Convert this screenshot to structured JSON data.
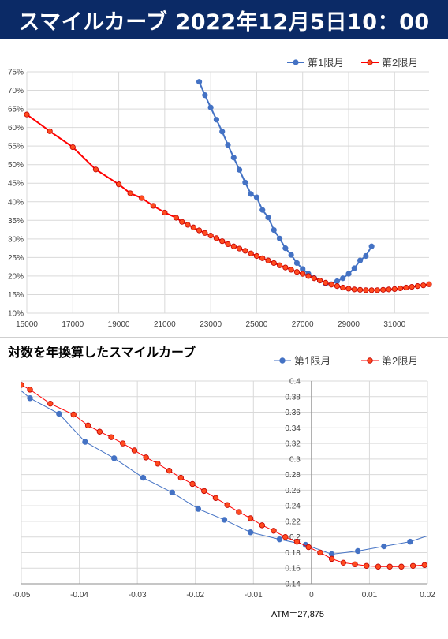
{
  "header": {
    "title": "スマイルカーブ 2022年12月5日10：00"
  },
  "colors": {
    "header_bg": "#0b2a66",
    "series1": "#4472c4",
    "series2": "#ff0000",
    "series2_fill": "#ff4b1f"
  },
  "chart_data": [
    {
      "type": "line",
      "title": "",
      "legend": "top-right",
      "grid": true,
      "xlim": [
        15000,
        32500
      ],
      "ylim": [
        10,
        75
      ],
      "x_ticks": [
        "15000",
        "17000",
        "19000",
        "21000",
        "23000",
        "25000",
        "27000",
        "29000",
        "31000"
      ],
      "y_ticks": [
        "10%",
        "15%",
        "20%",
        "25%",
        "30%",
        "35%",
        "40%",
        "45%",
        "50%",
        "55%",
        "60%",
        "65%",
        "70%",
        "75%"
      ],
      "series": [
        {
          "name": "第1限月",
          "x": [
            22500,
            22750,
            23000,
            23250,
            23500,
            23750,
            24000,
            24250,
            24500,
            24750,
            25000,
            25250,
            25500,
            25750,
            26000,
            26250,
            26500,
            26750,
            27000,
            27250,
            27500,
            27750,
            28000,
            28250,
            28500,
            28750,
            29000,
            29250,
            29500,
            29750,
            30000
          ],
          "y": [
            72.3,
            68.7,
            65.4,
            62.1,
            58.9,
            55.3,
            51.9,
            48.6,
            45.2,
            42.1,
            41.2,
            37.8,
            35.8,
            32.4,
            30.1,
            27.5,
            25.7,
            23.5,
            21.9,
            20.6,
            19.5,
            18.8,
            18.0,
            17.8,
            18.6,
            19.4,
            20.6,
            22.1,
            24.2,
            25.4,
            28.0
          ]
        },
        {
          "name": "第2限月",
          "x": [
            15000,
            16000,
            17000,
            18000,
            19000,
            19500,
            20000,
            20500,
            21000,
            21500,
            21750,
            22000,
            22250,
            22500,
            22750,
            23000,
            23250,
            23500,
            23750,
            24000,
            24250,
            24500,
            24750,
            25000,
            25250,
            25500,
            25750,
            26000,
            26250,
            26500,
            26750,
            27000,
            27250,
            27500,
            27750,
            28000,
            28250,
            28500,
            28750,
            29000,
            29250,
            29500,
            29750,
            30000,
            30250,
            30500,
            30750,
            31000,
            31250,
            31500,
            31750,
            32000,
            32250,
            32500
          ],
          "y": [
            63.5,
            59.0,
            54.7,
            48.7,
            44.7,
            42.3,
            41.0,
            38.9,
            37.1,
            35.7,
            34.6,
            33.8,
            33.1,
            32.3,
            31.6,
            30.9,
            30.2,
            29.4,
            28.6,
            28.0,
            27.4,
            26.8,
            26.1,
            25.4,
            24.8,
            24.2,
            23.5,
            22.9,
            22.3,
            21.7,
            21.1,
            20.6,
            20.0,
            19.4,
            18.8,
            18.2,
            17.7,
            17.3,
            16.9,
            16.6,
            16.4,
            16.3,
            16.2,
            16.2,
            16.2,
            16.3,
            16.4,
            16.5,
            16.7,
            16.9,
            17.1,
            17.3,
            17.5,
            17.8
          ]
        }
      ]
    },
    {
      "type": "line",
      "title": "対数を年換算したスマイルカーブ",
      "legend": "top-right",
      "grid": true,
      "xlim": [
        -0.05,
        0.02
      ],
      "ylim": [
        0.14,
        0.4
      ],
      "x_ticks": [
        "-0.05",
        "-0.04",
        "-0.03",
        "-0.02",
        "-0.01",
        "0",
        "0.01",
        "0.02"
      ],
      "y_ticks": [
        "0.14",
        "0.16",
        "0.18",
        "0.2",
        "0.22",
        "0.24",
        "0.26",
        "0.28",
        "0.3",
        "0.32",
        "0.34",
        "0.36",
        "0.38",
        "0.4"
      ],
      "annotation": "ATM＝27,875",
      "series": [
        {
          "name": "第1限月",
          "x": [
            -0.052,
            -0.0485,
            -0.0435,
            -0.039,
            -0.034,
            -0.029,
            -0.024,
            -0.0195,
            -0.015,
            -0.0105,
            -0.0055,
            -0.001,
            0.0035,
            0.008,
            0.0125,
            0.017,
            0.021
          ],
          "y": [
            0.4,
            0.378,
            0.358,
            0.322,
            0.301,
            0.276,
            0.257,
            0.236,
            0.222,
            0.206,
            0.197,
            0.19,
            0.178,
            0.182,
            0.188,
            0.194,
            0.204
          ]
        },
        {
          "name": "第2限月",
          "x": [
            -0.05,
            -0.0485,
            -0.045,
            -0.041,
            -0.0385,
            -0.0365,
            -0.0345,
            -0.0325,
            -0.0305,
            -0.0285,
            -0.0265,
            -0.0245,
            -0.0225,
            -0.0205,
            -0.0185,
            -0.0165,
            -0.0145,
            -0.0125,
            -0.0105,
            -0.0085,
            -0.0065,
            -0.0045,
            -0.0025,
            -0.0005,
            0.0015,
            0.0035,
            0.0055,
            0.0075,
            0.0095,
            0.0115,
            0.0135,
            0.0155,
            0.0175,
            0.0195
          ],
          "y": [
            0.395,
            0.389,
            0.371,
            0.357,
            0.343,
            0.335,
            0.328,
            0.32,
            0.311,
            0.302,
            0.294,
            0.285,
            0.276,
            0.268,
            0.259,
            0.25,
            0.241,
            0.232,
            0.224,
            0.215,
            0.208,
            0.2,
            0.194,
            0.187,
            0.18,
            0.172,
            0.167,
            0.165,
            0.163,
            0.162,
            0.162,
            0.162,
            0.163,
            0.164
          ]
        }
      ]
    }
  ]
}
